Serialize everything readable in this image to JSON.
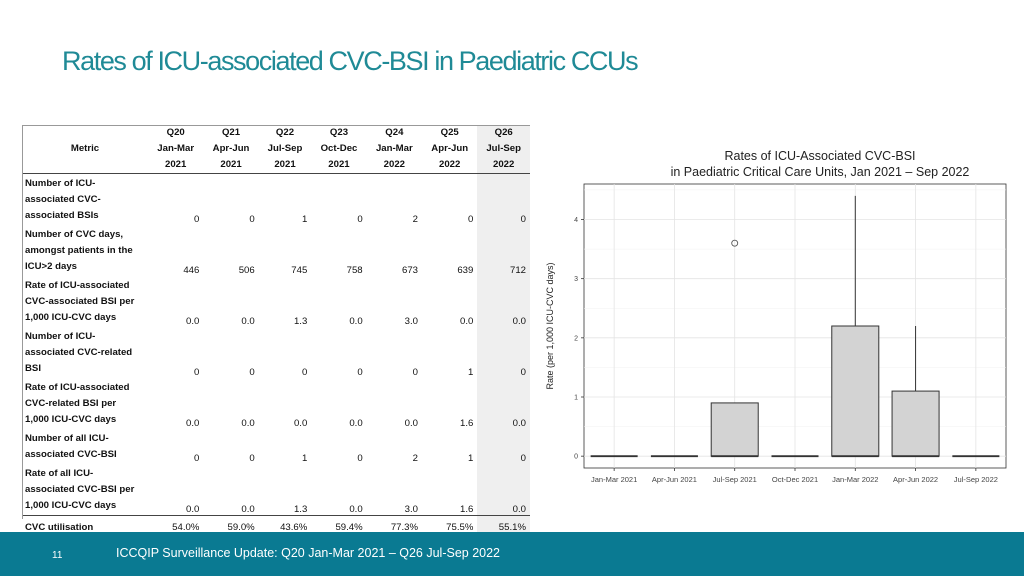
{
  "slide": {
    "title": "Rates of ICU-associated CVC-BSI in Paediatric CCUs",
    "page_number": "11",
    "footer": "ICCQIP Surveillance Update: Q20 Jan-Mar 2021 – Q26 Jul-Sep 2022",
    "brand_color": "#0a7a92",
    "title_color": "#1f8a96"
  },
  "table": {
    "metric_header": "Metric",
    "columns": [
      {
        "q": "Q20",
        "months": "Jan-Mar",
        "year": "2021"
      },
      {
        "q": "Q21",
        "months": "Apr-Jun",
        "year": "2021"
      },
      {
        "q": "Q22",
        "months": "Jul-Sep",
        "year": "2021"
      },
      {
        "q": "Q23",
        "months": "Oct-Dec",
        "year": "2021"
      },
      {
        "q": "Q24",
        "months": "Jan-Mar",
        "year": "2022"
      },
      {
        "q": "Q25",
        "months": "Apr-Jun",
        "year": "2022"
      },
      {
        "q": "Q26",
        "months": "Jul-Sep",
        "year": "2022"
      }
    ],
    "rows": [
      {
        "lines": [
          "Number of ICU-",
          "associated CVC-",
          "associated BSIs"
        ],
        "values": [
          "0",
          "0",
          "1",
          "0",
          "2",
          "0",
          "0"
        ]
      },
      {
        "lines": [
          "Number of CVC days,",
          "amongst patients in the",
          "ICU>2 days"
        ],
        "values": [
          "446",
          "506",
          "745",
          "758",
          "673",
          "639",
          "712"
        ]
      },
      {
        "lines": [
          "Rate of ICU-associated",
          "CVC-associated BSI  per",
          "1,000 ICU-CVC days"
        ],
        "values": [
          "0.0",
          "0.0",
          "1.3",
          "0.0",
          "3.0",
          "0.0",
          "0.0"
        ]
      },
      {
        "lines": [
          "Number of ICU-",
          "associated CVC-related",
          "BSI"
        ],
        "values": [
          "0",
          "0",
          "0",
          "0",
          "0",
          "1",
          "0"
        ]
      },
      {
        "lines": [
          "Rate of ICU-associated",
          "CVC-related BSI per",
          "1,000 ICU-CVC days"
        ],
        "values": [
          "0.0",
          "0.0",
          "0.0",
          "0.0",
          "0.0",
          "1.6",
          "0.0"
        ]
      },
      {
        "lines": [
          "Number of all ICU-",
          "associated CVC-BSI"
        ],
        "values": [
          "0",
          "0",
          "1",
          "0",
          "2",
          "1",
          "0"
        ]
      },
      {
        "lines": [
          "Rate of all ICU-",
          "associated CVC-BSI per",
          "1,000 ICU-CVC days"
        ],
        "values": [
          "0.0",
          "0.0",
          "1.3",
          "0.0",
          "3.0",
          "1.6",
          "0.0"
        ]
      }
    ],
    "utilisation": {
      "label": "CVC utilisation",
      "values": [
        "54.0%",
        "59.0%",
        "43.6%",
        "59.4%",
        "77.3%",
        "75.5%",
        "55.1%"
      ]
    }
  },
  "chart_data": {
    "type": "box",
    "title": "Rates of ICU-Associated CVC-BSI",
    "subtitle": "in Paediatric Critical Care Units, Jan 2021 – Sep 2022",
    "xlabel": "",
    "ylabel": "Rate (per 1,000 ICU-CVC days)",
    "ylim": [
      -0.2,
      4.6
    ],
    "yticks": [
      0,
      1,
      2,
      3,
      4
    ],
    "grid": true,
    "categories": [
      "Jan-Mar 2021",
      "Apr-Jun 2021",
      "Jul-Sep 2021",
      "Oct-Dec 2021",
      "Jan-Mar 2022",
      "Apr-Jun 2022",
      "Jul-Sep 2022"
    ],
    "boxes": [
      {
        "min": 0,
        "q1": 0,
        "median": 0,
        "q3": 0,
        "max": 0,
        "outliers": []
      },
      {
        "min": 0,
        "q1": 0,
        "median": 0,
        "q3": 0,
        "max": 0,
        "outliers": []
      },
      {
        "min": 0,
        "q1": 0,
        "median": 0,
        "q3": 0.9,
        "max": 0.9,
        "outliers": [
          3.6
        ]
      },
      {
        "min": 0,
        "q1": 0,
        "median": 0,
        "q3": 0,
        "max": 0,
        "outliers": []
      },
      {
        "min": 0,
        "q1": 0,
        "median": 0,
        "q3": 2.2,
        "max": 4.4,
        "outliers": []
      },
      {
        "min": 0,
        "q1": 0,
        "median": 0,
        "q3": 1.1,
        "max": 2.2,
        "outliers": []
      },
      {
        "min": 0,
        "q1": 0,
        "median": 0,
        "q3": 0,
        "max": 0,
        "outliers": []
      }
    ],
    "box_fill": "#d3d3d3",
    "box_stroke": "#333333"
  }
}
